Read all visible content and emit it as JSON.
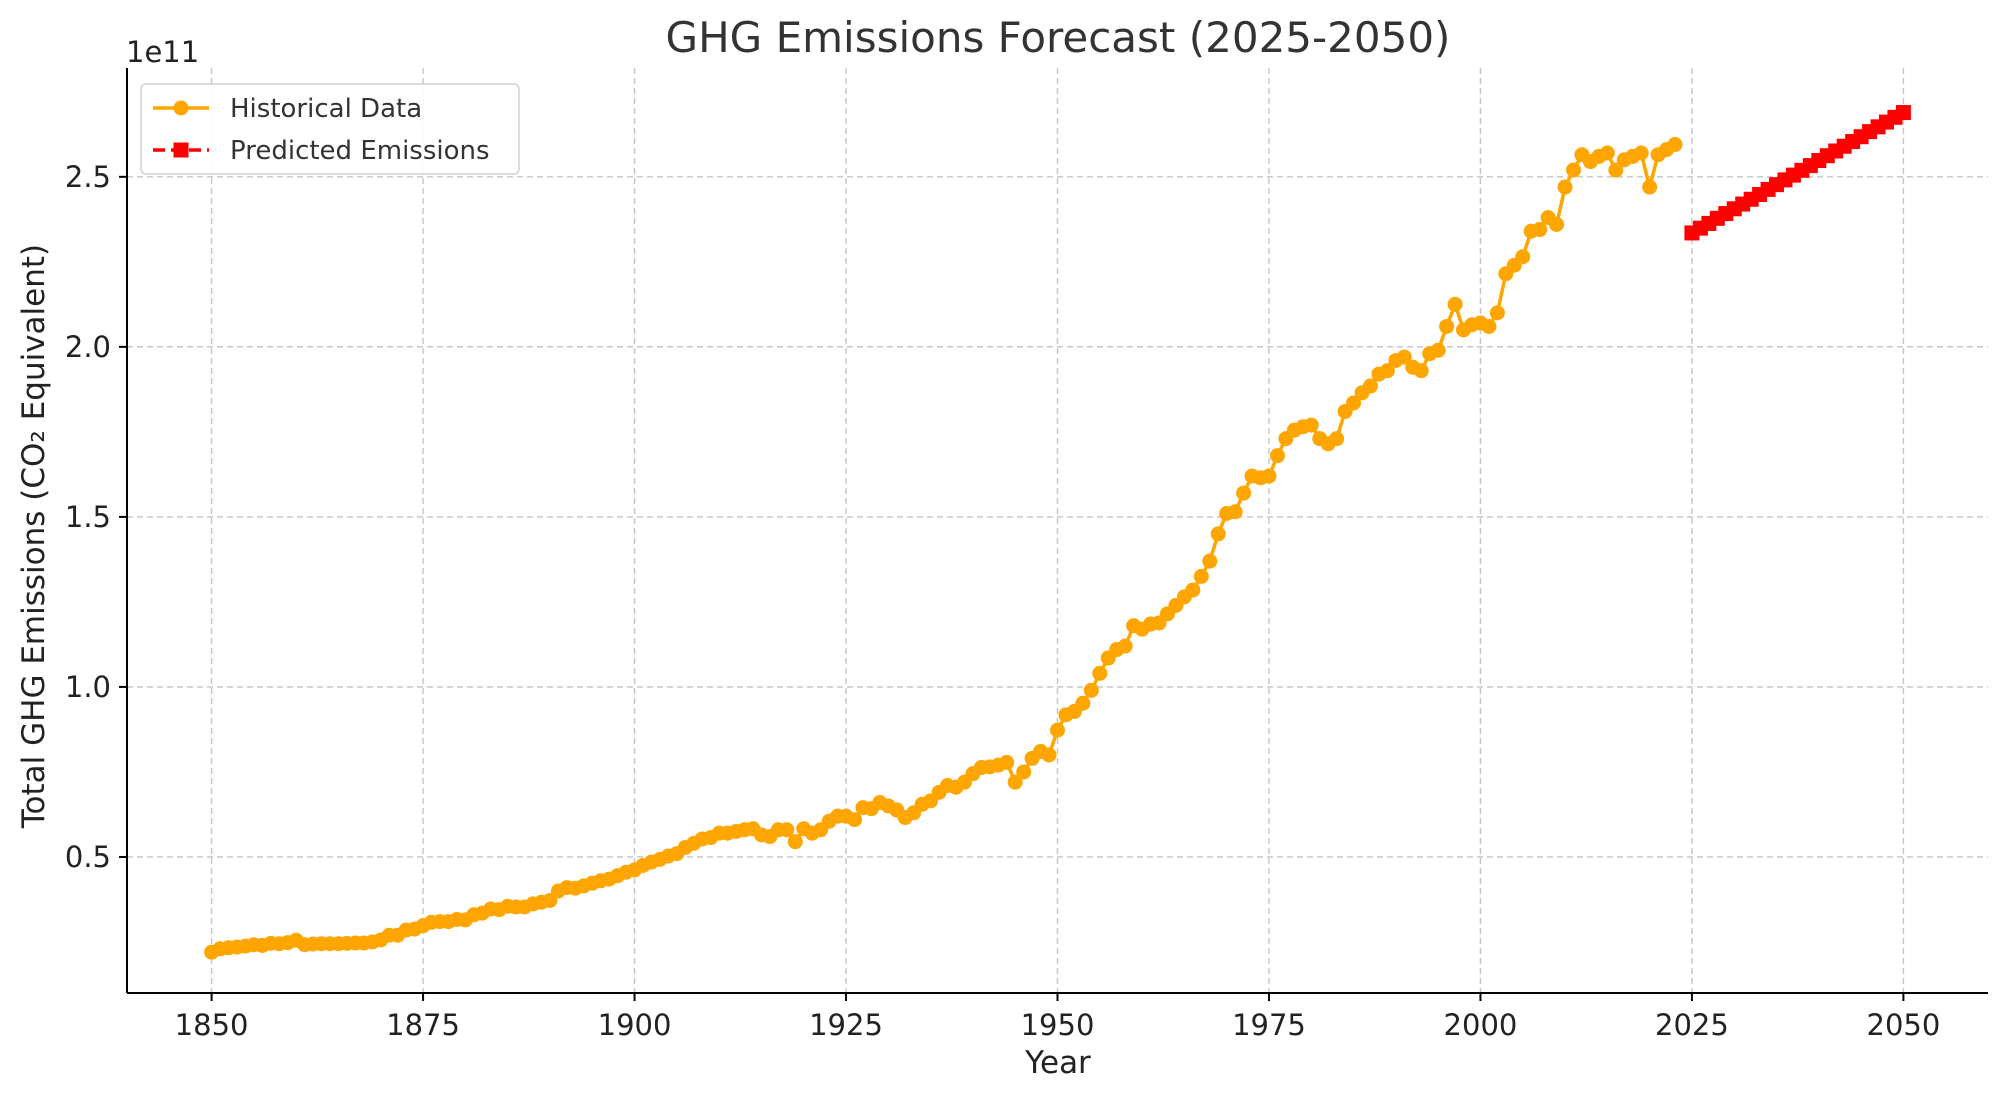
{
  "chart_data": {
    "type": "line",
    "title": "GHG Emissions Forecast (2025-2050)",
    "xlabel": "Year",
    "ylabel": "Total GHG Emissions (CO₂ Equivalent)",
    "y_offset_label": "1e11",
    "y_scale_factor": 100000000000,
    "xlim": [
      1840,
      2060
    ],
    "ylim": [
      10000000000,
      282000000000
    ],
    "grid": true,
    "legend_position": "upper-left",
    "x_ticks": [
      1850,
      1875,
      1900,
      1925,
      1950,
      1975,
      2000,
      2025,
      2050
    ],
    "x_tick_labels": [
      "1850",
      "1875",
      "1900",
      "1925",
      "1950",
      "1975",
      "2000",
      "2025",
      "2050"
    ],
    "y_ticks": [
      50000000000,
      100000000000,
      150000000000,
      200000000000,
      250000000000
    ],
    "y_tick_labels": [
      "0.5",
      "1.0",
      "1.5",
      "2.0",
      "2.5"
    ],
    "series": [
      {
        "name": "Historical Data",
        "color": "#FFA500",
        "marker": "circle",
        "line_style": "solid",
        "x": [
          1850,
          1851,
          1852,
          1853,
          1854,
          1855,
          1856,
          1857,
          1858,
          1859,
          1860,
          1861,
          1862,
          1863,
          1864,
          1865,
          1866,
          1867,
          1868,
          1869,
          1870,
          1871,
          1872,
          1873,
          1874,
          1875,
          1876,
          1877,
          1878,
          1879,
          1880,
          1881,
          1882,
          1883,
          1884,
          1885,
          1886,
          1887,
          1888,
          1889,
          1890,
          1891,
          1892,
          1893,
          1894,
          1895,
          1896,
          1897,
          1898,
          1899,
          1900,
          1901,
          1902,
          1903,
          1904,
          1905,
          1906,
          1907,
          1908,
          1909,
          1910,
          1911,
          1912,
          1913,
          1914,
          1915,
          1916,
          1917,
          1918,
          1919,
          1920,
          1921,
          1922,
          1923,
          1924,
          1925,
          1926,
          1927,
          1928,
          1929,
          1930,
          1931,
          1932,
          1933,
          1934,
          1935,
          1936,
          1937,
          1938,
          1939,
          1940,
          1941,
          1942,
          1943,
          1944,
          1945,
          1946,
          1947,
          1948,
          1949,
          1950,
          1951,
          1952,
          1953,
          1954,
          1955,
          1956,
          1957,
          1958,
          1959,
          1960,
          1961,
          1962,
          1963,
          1964,
          1965,
          1966,
          1967,
          1968,
          1969,
          1970,
          1971,
          1972,
          1973,
          1974,
          1975,
          1976,
          1977,
          1978,
          1979,
          1980,
          1981,
          1982,
          1983,
          1984,
          1985,
          1986,
          1987,
          1988,
          1989,
          1990,
          1991,
          1992,
          1993,
          1994,
          1995,
          1996,
          1997,
          1998,
          1999,
          2000,
          2001,
          2002,
          2003,
          2004,
          2005,
          2006,
          2007,
          2008,
          2009,
          2010,
          2011,
          2012,
          2013,
          2014,
          2015,
          2016,
          2017,
          2018,
          2019,
          2020,
          2021,
          2022,
          2023
        ],
        "values": [
          22000000000,
          23000000000,
          23300000000,
          23500000000,
          23800000000,
          24200000000,
          24000000000,
          24600000000,
          24500000000,
          24800000000,
          25500000000,
          24200000000,
          24400000000,
          24500000000,
          24500000000,
          24500000000,
          24600000000,
          24700000000,
          24700000000,
          25000000000,
          25600000000,
          27000000000,
          27000000000,
          28500000000,
          28800000000,
          29800000000,
          30800000000,
          31000000000,
          31000000000,
          31600000000,
          31500000000,
          33000000000,
          33500000000,
          34700000000,
          34500000000,
          35500000000,
          35300000000,
          35300000000,
          36200000000,
          36700000000,
          37200000000,
          40000000000,
          41000000000,
          40800000000,
          41500000000,
          42300000000,
          43000000000,
          43500000000,
          44500000000,
          45500000000,
          46200000000,
          47500000000,
          48500000000,
          49300000000,
          50300000000,
          51000000000,
          52800000000,
          54000000000,
          55300000000,
          55700000000,
          57000000000,
          57000000000,
          57500000000,
          58000000000,
          58300000000,
          56500000000,
          56000000000,
          58000000000,
          58000000000,
          54500000000,
          58300000000,
          57000000000,
          58000000000,
          60500000000,
          62000000000,
          62000000000,
          61000000000,
          64500000000,
          64200000000,
          66000000000,
          65000000000,
          63800000000,
          61600000000,
          63000000000,
          65500000000,
          66500000000,
          69000000000,
          71000000000,
          70500000000,
          72000000000,
          74500000000,
          76300000000,
          76500000000,
          77000000000,
          77800000000,
          72000000000,
          75000000000,
          79000000000,
          81000000000,
          80000000000,
          87300000000,
          91800000000,
          92800000000,
          95200000000,
          99000000000,
          104000000000,
          108500000000,
          111000000000,
          112000000000,
          118000000000,
          117000000000,
          118500000000,
          118800000000,
          121500000000,
          124000000000,
          126500000000,
          128500000000,
          132500000000,
          137000000000,
          145000000000,
          151000000000,
          151500000000,
          157000000000,
          162000000000,
          161500000000,
          162000000000,
          168000000000,
          173000000000,
          175500000000,
          176500000000,
          177000000000,
          173000000000,
          171500000000,
          173000000000,
          181000000000,
          183500000000,
          186500000000,
          188500000000,
          192000000000,
          193000000000,
          196000000000,
          197000000000,
          194000000000,
          193000000000,
          198000000000,
          199000000000,
          206000000000,
          212500000000,
          205000000000,
          206500000000,
          207000000000,
          206000000000,
          210000000000,
          221500000000,
          224000000000,
          226500000000,
          234000000000,
          234500000000,
          238000000000,
          236000000000,
          247000000000,
          252000000000,
          256500000000,
          254500000000,
          256000000000,
          257000000000,
          252000000000,
          255000000000,
          256000000000,
          257000000000,
          247000000000,
          256500000000,
          258000000000,
          259500000000
        ]
      },
      {
        "name": "Predicted Emissions",
        "color": "#FF0000",
        "marker": "square",
        "line_style": "dashed",
        "x": [
          2025,
          2026,
          2027,
          2028,
          2029,
          2030,
          2031,
          2032,
          2033,
          2034,
          2035,
          2036,
          2037,
          2038,
          2039,
          2040,
          2041,
          2042,
          2043,
          2044,
          2045,
          2046,
          2047,
          2048,
          2049,
          2050
        ],
        "values": [
          233500000000,
          234900000000,
          236300000000,
          237800000000,
          239200000000,
          240600000000,
          242000000000,
          243400000000,
          244800000000,
          246300000000,
          247700000000,
          249100000000,
          250500000000,
          251900000000,
          253300000000,
          254800000000,
          256200000000,
          257600000000,
          259000000000,
          260400000000,
          261800000000,
          263300000000,
          264700000000,
          266100000000,
          267500000000,
          268900000000
        ]
      }
    ]
  }
}
